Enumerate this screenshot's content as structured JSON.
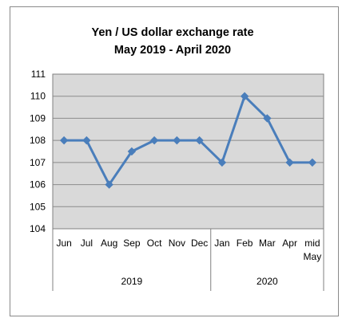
{
  "chart_data": {
    "type": "line",
    "title": "Yen / US dollar exchange rate",
    "subtitle": "May 2019  - April 2020",
    "categories": [
      "Jun",
      "Jul",
      "Aug",
      "Sep",
      "Oct",
      "Nov",
      "Dec",
      "Jan",
      "Feb",
      "Mar",
      "Apr",
      "mid May"
    ],
    "groups": [
      {
        "label": "2019",
        "start": 0,
        "end": 6
      },
      {
        "label": "2020",
        "start": 7,
        "end": 11
      }
    ],
    "series": [
      {
        "values": [
          108,
          108,
          106,
          107.5,
          108,
          108,
          108,
          107,
          110,
          109,
          107,
          107
        ],
        "color": "#4a7ebb"
      }
    ],
    "ylim": [
      104,
      111
    ],
    "yticks": [
      104,
      105,
      106,
      107,
      108,
      109,
      110,
      111
    ],
    "grid": true,
    "legend": "none",
    "plot_background": "#d9d9d9"
  }
}
